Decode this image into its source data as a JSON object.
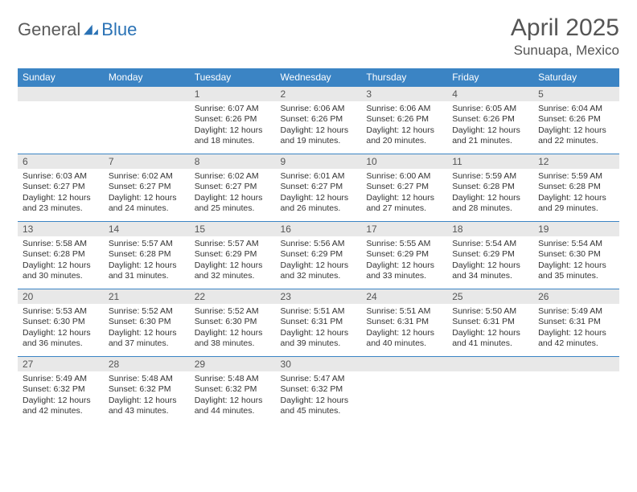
{
  "logo": {
    "part1": "General",
    "part2": "Blue"
  },
  "title": "April 2025",
  "location": "Sunuapa, Mexico",
  "colors": {
    "header_bg": "#3b84c4",
    "header_text": "#ffffff",
    "daynum_bg": "#e8e8e8",
    "border": "#3b84c4",
    "logo_gray": "#5a5a5a",
    "logo_blue": "#2a72b5",
    "text": "#333333"
  },
  "weekdays": [
    "Sunday",
    "Monday",
    "Tuesday",
    "Wednesday",
    "Thursday",
    "Friday",
    "Saturday"
  ],
  "layout": {
    "first_weekday_index": 2,
    "days_in_month": 30,
    "weeks": 5
  },
  "days": {
    "1": {
      "sunrise": "6:07 AM",
      "sunset": "6:26 PM",
      "daylight": "12 hours and 18 minutes."
    },
    "2": {
      "sunrise": "6:06 AM",
      "sunset": "6:26 PM",
      "daylight": "12 hours and 19 minutes."
    },
    "3": {
      "sunrise": "6:06 AM",
      "sunset": "6:26 PM",
      "daylight": "12 hours and 20 minutes."
    },
    "4": {
      "sunrise": "6:05 AM",
      "sunset": "6:26 PM",
      "daylight": "12 hours and 21 minutes."
    },
    "5": {
      "sunrise": "6:04 AM",
      "sunset": "6:26 PM",
      "daylight": "12 hours and 22 minutes."
    },
    "6": {
      "sunrise": "6:03 AM",
      "sunset": "6:27 PM",
      "daylight": "12 hours and 23 minutes."
    },
    "7": {
      "sunrise": "6:02 AM",
      "sunset": "6:27 PM",
      "daylight": "12 hours and 24 minutes."
    },
    "8": {
      "sunrise": "6:02 AM",
      "sunset": "6:27 PM",
      "daylight": "12 hours and 25 minutes."
    },
    "9": {
      "sunrise": "6:01 AM",
      "sunset": "6:27 PM",
      "daylight": "12 hours and 26 minutes."
    },
    "10": {
      "sunrise": "6:00 AM",
      "sunset": "6:27 PM",
      "daylight": "12 hours and 27 minutes."
    },
    "11": {
      "sunrise": "5:59 AM",
      "sunset": "6:28 PM",
      "daylight": "12 hours and 28 minutes."
    },
    "12": {
      "sunrise": "5:59 AM",
      "sunset": "6:28 PM",
      "daylight": "12 hours and 29 minutes."
    },
    "13": {
      "sunrise": "5:58 AM",
      "sunset": "6:28 PM",
      "daylight": "12 hours and 30 minutes."
    },
    "14": {
      "sunrise": "5:57 AM",
      "sunset": "6:28 PM",
      "daylight": "12 hours and 31 minutes."
    },
    "15": {
      "sunrise": "5:57 AM",
      "sunset": "6:29 PM",
      "daylight": "12 hours and 32 minutes."
    },
    "16": {
      "sunrise": "5:56 AM",
      "sunset": "6:29 PM",
      "daylight": "12 hours and 32 minutes."
    },
    "17": {
      "sunrise": "5:55 AM",
      "sunset": "6:29 PM",
      "daylight": "12 hours and 33 minutes."
    },
    "18": {
      "sunrise": "5:54 AM",
      "sunset": "6:29 PM",
      "daylight": "12 hours and 34 minutes."
    },
    "19": {
      "sunrise": "5:54 AM",
      "sunset": "6:30 PM",
      "daylight": "12 hours and 35 minutes."
    },
    "20": {
      "sunrise": "5:53 AM",
      "sunset": "6:30 PM",
      "daylight": "12 hours and 36 minutes."
    },
    "21": {
      "sunrise": "5:52 AM",
      "sunset": "6:30 PM",
      "daylight": "12 hours and 37 minutes."
    },
    "22": {
      "sunrise": "5:52 AM",
      "sunset": "6:30 PM",
      "daylight": "12 hours and 38 minutes."
    },
    "23": {
      "sunrise": "5:51 AM",
      "sunset": "6:31 PM",
      "daylight": "12 hours and 39 minutes."
    },
    "24": {
      "sunrise": "5:51 AM",
      "sunset": "6:31 PM",
      "daylight": "12 hours and 40 minutes."
    },
    "25": {
      "sunrise": "5:50 AM",
      "sunset": "6:31 PM",
      "daylight": "12 hours and 41 minutes."
    },
    "26": {
      "sunrise": "5:49 AM",
      "sunset": "6:31 PM",
      "daylight": "12 hours and 42 minutes."
    },
    "27": {
      "sunrise": "5:49 AM",
      "sunset": "6:32 PM",
      "daylight": "12 hours and 42 minutes."
    },
    "28": {
      "sunrise": "5:48 AM",
      "sunset": "6:32 PM",
      "daylight": "12 hours and 43 minutes."
    },
    "29": {
      "sunrise": "5:48 AM",
      "sunset": "6:32 PM",
      "daylight": "12 hours and 44 minutes."
    },
    "30": {
      "sunrise": "5:47 AM",
      "sunset": "6:32 PM",
      "daylight": "12 hours and 45 minutes."
    }
  },
  "labels": {
    "sunrise": "Sunrise: ",
    "sunset": "Sunset: ",
    "daylight": "Daylight: "
  }
}
